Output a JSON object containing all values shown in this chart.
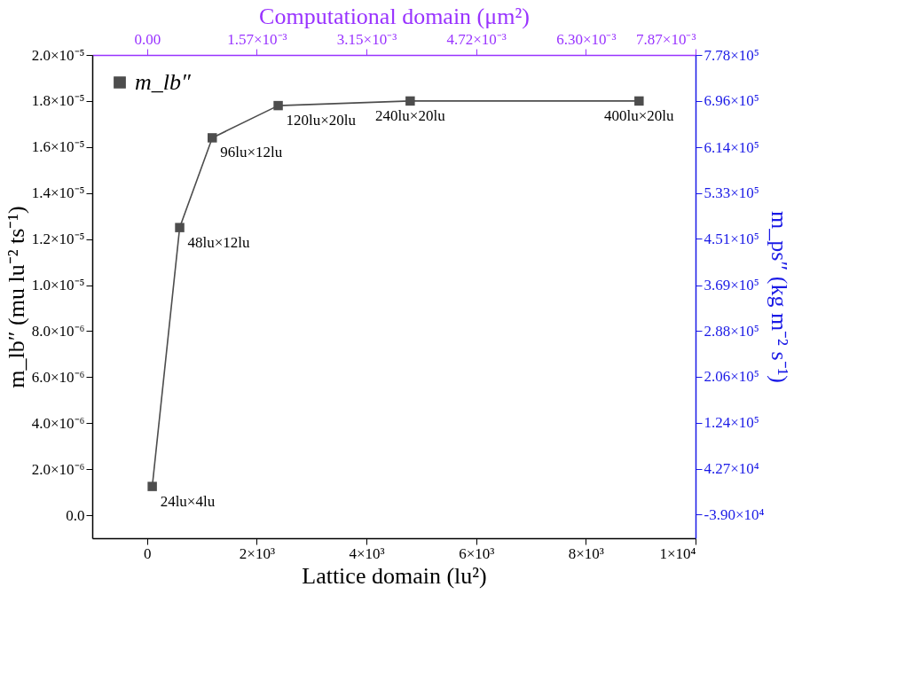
{
  "chart_data": {
    "type": "line",
    "xlabel": "Lattice domain (lu²)",
    "ylabel": "m_lb″ (mu lu⁻² ts⁻¹)",
    "y2label": "m_ps″ (kg m⁻² s⁻¹)",
    "x2label": "Computational domain (μm²)",
    "series": [
      {
        "name": "m_lb″",
        "color": "#4d4d4d",
        "x": [
          94,
          594,
          1188,
          2390,
          4797,
          8970
        ],
        "values": [
          1.25e-06,
          1.25e-05,
          1.64e-05,
          1.78e-05,
          1.8e-05,
          1.8e-05
        ]
      }
    ],
    "xlim": [
      -1000,
      10000
    ],
    "xticks": [
      0,
      {
        "value": 2000,
        "label": "2×10³"
      },
      {
        "value": 4000,
        "label": "4×10³"
      },
      {
        "value": 6000,
        "label": "6×10³"
      },
      {
        "value": 8000,
        "label": "8×10³"
      },
      {
        "value": 10000,
        "label": "1×10⁴"
      }
    ],
    "ylim": [
      -1e-06,
      2e-05
    ],
    "yticks": [
      {
        "value": 0,
        "label": "0.0"
      },
      {
        "value": 2e-06,
        "label": "2.0×10⁻⁶"
      },
      {
        "value": 4e-06,
        "label": "4.0×10⁻⁶"
      },
      {
        "value": 6e-06,
        "label": "6.0×10⁻⁶"
      },
      {
        "value": 8e-06,
        "label": "8.0×10⁻⁶"
      },
      {
        "value": 1e-05,
        "label": "1.0×10⁻⁵"
      },
      {
        "value": 1.2e-05,
        "label": "1.2×10⁻⁵"
      },
      {
        "value": 1.4e-05,
        "label": "1.4×10⁻⁵"
      },
      {
        "value": 1.6e-05,
        "label": "1.6×10⁻⁵"
      },
      {
        "value": 1.8e-05,
        "label": "1.8×10⁻⁵"
      },
      {
        "value": 2e-05,
        "label": "2.0×10⁻⁵"
      }
    ],
    "x2lim": [
      -0.000787,
      0.00787
    ],
    "x2ticks": [
      {
        "value": 0,
        "label": "0.00"
      },
      {
        "value": 0.001574,
        "label": "1.57×10⁻³"
      },
      {
        "value": 0.003148,
        "label": "3.15×10⁻³"
      },
      {
        "value": 0.004722,
        "label": "4.72×10⁻³"
      },
      {
        "value": 0.006296,
        "label": "6.30×10⁻³"
      },
      {
        "value": 0.00787,
        "label": "7.87×10⁻³"
      }
    ],
    "y2lim": [
      -80850,
      778000
    ],
    "y2ticks": [
      {
        "value": -39000,
        "label": "-3.90×10⁴"
      },
      {
        "value": 42700,
        "label": "4.27×10⁴"
      },
      {
        "value": 124400,
        "label": "1.24×10⁵"
      },
      {
        "value": 206100,
        "label": "2.06×10⁵"
      },
      {
        "value": 287800,
        "label": "2.88×10⁵"
      },
      {
        "value": 369000,
        "label": "3.69×10⁵"
      },
      {
        "value": 451200,
        "label": "4.51×10⁵"
      },
      {
        "value": 532900,
        "label": "5.33×10⁵"
      },
      {
        "value": 614000,
        "label": "6.14×10⁵"
      },
      {
        "value": 696300,
        "label": "6.96×10⁵"
      },
      {
        "value": 778000,
        "label": "7.78×10⁵"
      }
    ],
    "annotations": [
      {
        "text": "24lu×4lu",
        "x": 94,
        "y": 1.25e-06
      },
      {
        "text": "48lu×12lu",
        "x": 594,
        "y": 1.25e-05
      },
      {
        "text": "96lu×12lu",
        "x": 1188,
        "y": 1.64e-05
      },
      {
        "text": "120lu×20lu",
        "x": 2390,
        "y": 1.78e-05
      },
      {
        "text": "240lu×20lu",
        "x": 4797,
        "y": 1.8e-05
      },
      {
        "text": "400lu×20lu",
        "x": 8970,
        "y": 1.8e-05
      }
    ],
    "marker": "square",
    "line_style": "solid",
    "grid": false,
    "legend": "top left"
  }
}
